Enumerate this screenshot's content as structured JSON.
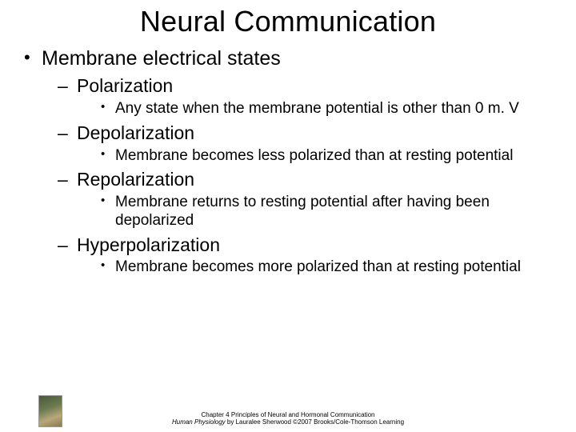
{
  "title": "Neural Communication",
  "level1": "Membrane electrical states",
  "items": [
    {
      "heading": "Polarization",
      "detail": "Any state when the membrane potential is other than 0 m. V"
    },
    {
      "heading": "Depolarization",
      "detail": "Membrane becomes less polarized than at resting potential"
    },
    {
      "heading": "Repolarization",
      "detail": "Membrane returns to resting potential after having been depolarized"
    },
    {
      "heading": "Hyperpolarization",
      "detail": "Membrane becomes more polarized than at resting potential"
    }
  ],
  "footer": {
    "line1": "Chapter 4 Principles of Neural and Hormonal Communication",
    "line2a": "Human Physiology",
    "line2b": " by Lauralee Sherwood ©2007 Brooks/Cole-Thomson Learning"
  },
  "colors": {
    "background": "#ffffff",
    "text": "#000000"
  },
  "typography": {
    "title_fontsize": 36,
    "lvl1_fontsize": 25,
    "lvl2_fontsize": 23,
    "lvl3_fontsize": 19,
    "footer_fontsize": 8,
    "font_family": "Arial"
  }
}
